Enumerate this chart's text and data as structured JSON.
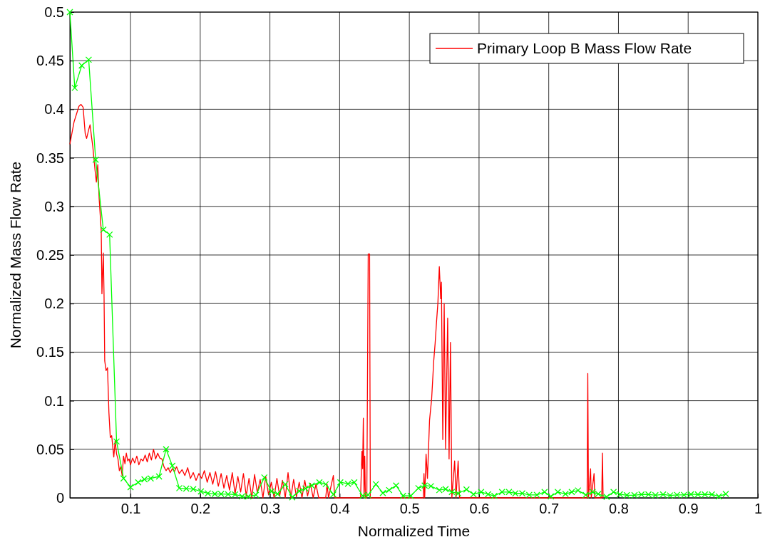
{
  "chart_data": {
    "type": "line",
    "xlabel": "Normalized Time",
    "ylabel": "Normalized Mass Flow Rate",
    "xlim": [
      0.013,
      1
    ],
    "ylim": [
      0,
      0.5
    ],
    "xticks": [
      0.1,
      0.2,
      0.3,
      0.4,
      0.5,
      0.6,
      0.7,
      0.8,
      0.9,
      1
    ],
    "yticks": [
      0,
      0.05,
      0.1,
      0.15,
      0.2,
      0.25,
      0.3,
      0.35,
      0.4,
      0.45,
      0.5
    ],
    "grid": true,
    "legend": "top right",
    "series": [
      {
        "name": "Primary Loop B Mass Flow Rate",
        "color": "#ff0000",
        "marker": "none",
        "x": [
          0.013,
          0.019,
          0.026,
          0.029,
          0.032,
          0.035,
          0.037,
          0.04,
          0.042,
          0.044,
          0.046,
          0.049,
          0.051,
          0.053,
          0.055,
          0.058,
          0.059,
          0.061,
          0.062,
          0.063,
          0.065,
          0.067,
          0.069,
          0.071,
          0.073,
          0.076,
          0.078,
          0.08,
          0.082,
          0.084,
          0.086,
          0.088,
          0.09,
          0.092,
          0.094,
          0.096,
          0.098,
          0.1,
          0.103,
          0.106,
          0.109,
          0.112,
          0.115,
          0.118,
          0.121,
          0.124,
          0.127,
          0.13,
          0.133,
          0.136,
          0.139,
          0.142,
          0.145,
          0.148,
          0.151,
          0.154,
          0.157,
          0.16,
          0.163,
          0.166,
          0.17,
          0.174,
          0.178,
          0.182,
          0.186,
          0.19,
          0.194,
          0.198,
          0.202,
          0.206,
          0.21,
          0.214,
          0.218,
          0.222,
          0.226,
          0.23,
          0.234,
          0.238,
          0.242,
          0.246,
          0.25,
          0.254,
          0.258,
          0.262,
          0.266,
          0.27,
          0.274,
          0.278,
          0.282,
          0.286,
          0.29,
          0.294,
          0.298,
          0.302,
          0.306,
          0.31,
          0.314,
          0.318,
          0.322,
          0.326,
          0.33,
          0.334,
          0.338,
          0.342,
          0.346,
          0.35,
          0.354,
          0.358,
          0.362,
          0.366,
          0.37,
          0.38,
          0.382,
          0.384,
          0.391,
          0.393,
          0.43,
          0.432,
          0.433,
          0.434,
          0.435,
          0.436,
          0.437,
          0.439,
          0.441,
          0.443,
          0.444,
          0.52,
          0.521,
          0.522,
          0.524,
          0.526,
          0.529,
          0.532,
          0.535,
          0.537,
          0.539,
          0.541,
          0.543,
          0.545,
          0.546,
          0.548,
          0.55,
          0.552,
          0.555,
          0.557,
          0.559,
          0.561,
          0.565,
          0.567,
          0.57,
          0.572,
          0.755,
          0.756,
          0.757,
          0.76,
          0.761,
          0.765,
          0.766,
          0.776,
          0.777,
          0.778
        ],
        "values": [
          0.364,
          0.387,
          0.403,
          0.405,
          0.402,
          0.375,
          0.37,
          0.379,
          0.384,
          0.372,
          0.361,
          0.338,
          0.325,
          0.343,
          0.308,
          0.275,
          0.21,
          0.252,
          0.21,
          0.141,
          0.131,
          0.134,
          0.088,
          0.062,
          0.064,
          0.042,
          0.059,
          0.045,
          0.04,
          0.028,
          0.032,
          0.023,
          0.043,
          0.035,
          0.046,
          0.038,
          0.04,
          0.034,
          0.041,
          0.036,
          0.043,
          0.034,
          0.04,
          0.038,
          0.044,
          0.037,
          0.046,
          0.039,
          0.05,
          0.04,
          0.046,
          0.041,
          0.04,
          0.032,
          0.028,
          0.031,
          0.026,
          0.03,
          0.027,
          0.032,
          0.025,
          0.029,
          0.023,
          0.031,
          0.02,
          0.026,
          0.018,
          0.025,
          0.02,
          0.028,
          0.016,
          0.026,
          0.014,
          0.027,
          0.012,
          0.025,
          0.01,
          0.023,
          0.008,
          0.026,
          0.004,
          0.022,
          0.006,
          0.025,
          0.002,
          0.02,
          0.0,
          0.024,
          0.005,
          0.019,
          0.0,
          0.022,
          0.003,
          0.016,
          0.0,
          0.02,
          0.002,
          0.018,
          0.0,
          0.026,
          0.0,
          0.019,
          0.001,
          0.016,
          0.0,
          0.018,
          0.002,
          0.015,
          0.0,
          0.014,
          0.0,
          0.0,
          0.014,
          0.0,
          0.023,
          0.0,
          0.0,
          0.048,
          0.03,
          0.082,
          0.0,
          0.043,
          0.0,
          0.0,
          0.251,
          0.251,
          0.0,
          0.0,
          0.025,
          0.0,
          0.045,
          0.02,
          0.08,
          0.102,
          0.141,
          0.159,
          0.181,
          0.201,
          0.238,
          0.205,
          0.222,
          0.06,
          0.2,
          0.05,
          0.185,
          0.04,
          0.16,
          0.0,
          0.038,
          0.0,
          0.038,
          0.0,
          0.0,
          0.128,
          0.0,
          0.03,
          0.0,
          0.025,
          0.0,
          0.0,
          0.046,
          0.0
        ]
      },
      {
        "color": "#00ff00",
        "marker": "cross",
        "x": [
          0.013,
          0.02,
          0.03,
          0.04,
          0.05,
          0.061,
          0.07,
          0.08,
          0.09,
          0.1,
          0.111,
          0.12,
          0.129,
          0.141,
          0.151,
          0.16,
          0.17,
          0.18,
          0.19,
          0.201,
          0.211,
          0.221,
          0.23,
          0.24,
          0.25,
          0.26,
          0.269,
          0.28,
          0.292,
          0.302,
          0.311,
          0.322,
          0.332,
          0.342,
          0.351,
          0.36,
          0.371,
          0.38,
          0.391,
          0.401,
          0.412,
          0.421,
          0.433,
          0.441,
          0.452,
          0.462,
          0.471,
          0.481,
          0.491,
          0.502,
          0.513,
          0.522,
          0.531,
          0.543,
          0.552,
          0.561,
          0.57,
          0.582,
          0.592,
          0.603,
          0.613,
          0.622,
          0.633,
          0.643,
          0.652,
          0.662,
          0.672,
          0.683,
          0.694,
          0.703,
          0.713,
          0.724,
          0.733,
          0.742,
          0.753,
          0.763,
          0.771,
          0.783,
          0.793,
          0.802,
          0.812,
          0.823,
          0.833,
          0.843,
          0.853,
          0.864,
          0.874,
          0.884,
          0.894,
          0.904,
          0.914,
          0.924,
          0.934,
          0.944,
          0.954
        ],
        "values": [
          0.5,
          0.422,
          0.445,
          0.451,
          0.348,
          0.276,
          0.271,
          0.058,
          0.02,
          0.011,
          0.016,
          0.019,
          0.02,
          0.022,
          0.05,
          0.033,
          0.01,
          0.0095,
          0.009,
          0.0066,
          0.0046,
          0.004,
          0.004,
          0.0037,
          0.0035,
          0.0015,
          0.0015,
          0.003,
          0.021,
          0.0066,
          0.004,
          0.014,
          0.0005,
          0.007,
          0.0095,
          0.0127,
          0.016,
          0.014,
          0.0035,
          0.016,
          0.0145,
          0.016,
          0.002,
          0.003,
          0.014,
          0.005,
          0.008,
          0.0127,
          0.002,
          0.002,
          0.01,
          0.0127,
          0.012,
          0.008,
          0.009,
          0.006,
          0.0046,
          0.0086,
          0.0037,
          0.006,
          0.0037,
          0.002,
          0.006,
          0.006,
          0.0046,
          0.0046,
          0.003,
          0.003,
          0.006,
          0.0015,
          0.006,
          0.004,
          0.006,
          0.0076,
          0.003,
          0.006,
          0.004,
          0.001,
          0.006,
          0.0037,
          0.0027,
          0.0027,
          0.0035,
          0.0035,
          0.0027,
          0.0035,
          0.0025,
          0.003,
          0.003,
          0.0037,
          0.0035,
          0.0035,
          0.0035,
          0.0015,
          0.004
        ]
      }
    ]
  }
}
